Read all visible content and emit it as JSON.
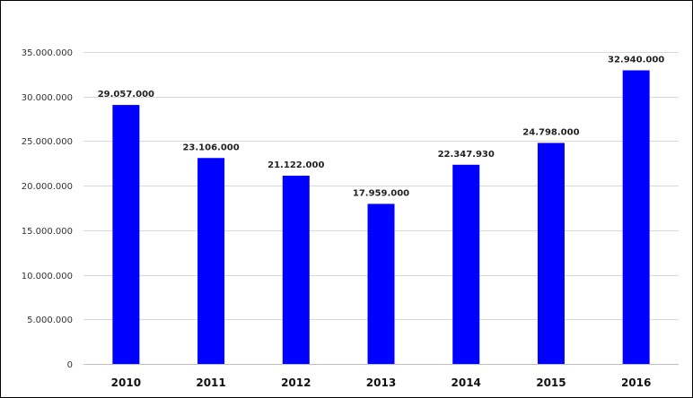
{
  "chart_data": {
    "type": "bar",
    "categories": [
      "2010",
      "2011",
      "2012",
      "2013",
      "2014",
      "2015",
      "2016"
    ],
    "values": [
      29057000,
      23106000,
      21122000,
      17959000,
      22347930,
      24798000,
      32940000
    ],
    "value_labels": [
      "29.057.000",
      "23.106.000",
      "21.122.000",
      "17.959.000",
      "22.347.930",
      "24.798.000",
      "32.940.000"
    ],
    "title": "",
    "xlabel": "",
    "ylabel": "",
    "ylim": [
      0,
      35000000
    ],
    "yticks": [
      0,
      5000000,
      10000000,
      15000000,
      20000000,
      25000000,
      30000000,
      35000000
    ],
    "ytick_labels": [
      "0",
      "5.000.000",
      "10.000.000",
      "15.000.000",
      "20.000.000",
      "25.000.000",
      "30.000.000",
      "35.000.000"
    ],
    "grid": true,
    "legend": "none",
    "bar_color": "#0000ff"
  }
}
